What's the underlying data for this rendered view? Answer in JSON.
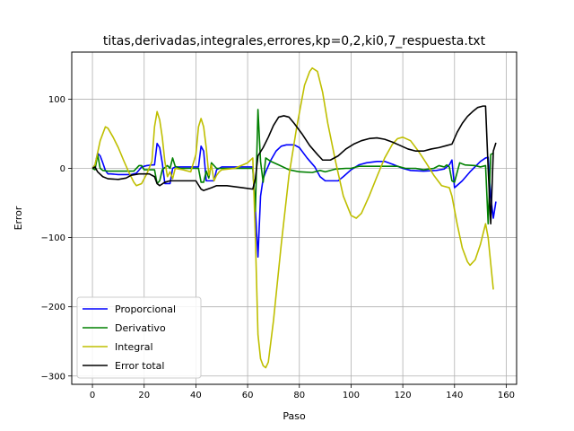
{
  "chart_data": {
    "type": "line",
    "title": "titas,derivadas,integrales,errores,kp=0,2,ki0,7_respuesta.txt",
    "xlabel": "Paso",
    "ylabel": "Error",
    "xlim": [
      -8,
      164
    ],
    "ylim": [
      -312,
      168
    ],
    "xticks": [
      0,
      20,
      40,
      60,
      80,
      100,
      120,
      140,
      160
    ],
    "yticks": [
      100,
      0,
      -100,
      -200,
      -300
    ],
    "ytick_labels": [
      "100",
      "0",
      "−100",
      "−200",
      "−300"
    ],
    "grid": true,
    "legend_position": "lower-left",
    "series": [
      {
        "name": "Proporcional",
        "color": "#0000ff",
        "points": [
          [
            0,
            0
          ],
          [
            1,
            5
          ],
          [
            2,
            22
          ],
          [
            3,
            18
          ],
          [
            4,
            8
          ],
          [
            5,
            -3
          ],
          [
            6,
            -8
          ],
          [
            7,
            -8
          ],
          [
            10,
            -9
          ],
          [
            15,
            -9
          ],
          [
            17,
            -7
          ],
          [
            19,
            2
          ],
          [
            21,
            4
          ],
          [
            23,
            5
          ],
          [
            24,
            5
          ],
          [
            25,
            36
          ],
          [
            26,
            30
          ],
          [
            27,
            8
          ],
          [
            28,
            -22
          ],
          [
            30,
            -22
          ],
          [
            31,
            0
          ],
          [
            32,
            2
          ],
          [
            35,
            2
          ],
          [
            41,
            2
          ],
          [
            42,
            32
          ],
          [
            43,
            25
          ],
          [
            44,
            -18
          ],
          [
            47,
            -18
          ],
          [
            48,
            -2
          ],
          [
            50,
            2
          ],
          [
            55,
            2
          ],
          [
            60,
            2
          ],
          [
            62,
            2
          ],
          [
            63,
            -60
          ],
          [
            64,
            -128
          ],
          [
            65,
            -40
          ],
          [
            66,
            -15
          ],
          [
            67,
            -5
          ],
          [
            69,
            12
          ],
          [
            71,
            25
          ],
          [
            73,
            32
          ],
          [
            75,
            34
          ],
          [
            78,
            34
          ],
          [
            80,
            30
          ],
          [
            83,
            15
          ],
          [
            86,
            2
          ],
          [
            88,
            -12
          ],
          [
            90,
            -18
          ],
          [
            95,
            -18
          ],
          [
            97,
            -12
          ],
          [
            100,
            -2
          ],
          [
            103,
            5
          ],
          [
            106,
            8
          ],
          [
            110,
            10
          ],
          [
            113,
            10
          ],
          [
            116,
            6
          ],
          [
            120,
            0
          ],
          [
            123,
            -3
          ],
          [
            128,
            -4
          ],
          [
            133,
            -3
          ],
          [
            136,
            -1
          ],
          [
            138,
            5
          ],
          [
            139,
            12
          ],
          [
            140,
            -28
          ],
          [
            143,
            -18
          ],
          [
            146,
            -5
          ],
          [
            150,
            10
          ],
          [
            152,
            15
          ],
          [
            153,
            16
          ],
          [
            154,
            -40
          ],
          [
            155,
            -72
          ],
          [
            156,
            -48
          ]
        ]
      },
      {
        "name": "Derivativo",
        "color": "#008000",
        "points": [
          [
            0,
            0
          ],
          [
            1,
            -2
          ],
          [
            2,
            20
          ],
          [
            3,
            0
          ],
          [
            4,
            -3
          ],
          [
            6,
            -4
          ],
          [
            8,
            -4
          ],
          [
            12,
            -4
          ],
          [
            16,
            -4
          ],
          [
            18,
            4
          ],
          [
            19,
            4
          ],
          [
            20,
            -2
          ],
          [
            22,
            -2
          ],
          [
            24,
            -2
          ],
          [
            25,
            -22
          ],
          [
            26,
            -18
          ],
          [
            27,
            -2
          ],
          [
            29,
            4
          ],
          [
            30,
            0
          ],
          [
            31,
            15
          ],
          [
            32,
            3
          ],
          [
            34,
            0
          ],
          [
            38,
            0
          ],
          [
            41,
            0
          ],
          [
            42,
            -20
          ],
          [
            43,
            -20
          ],
          [
            44,
            -4
          ],
          [
            45,
            -14
          ],
          [
            46,
            8
          ],
          [
            48,
            0
          ],
          [
            52,
            0
          ],
          [
            56,
            0
          ],
          [
            60,
            0
          ],
          [
            62,
            0
          ],
          [
            63,
            -62
          ],
          [
            64,
            85
          ],
          [
            65,
            10
          ],
          [
            66,
            -20
          ],
          [
            67,
            15
          ],
          [
            69,
            10
          ],
          [
            72,
            5
          ],
          [
            76,
            -2
          ],
          [
            80,
            -5
          ],
          [
            85,
            -6
          ],
          [
            88,
            -3
          ],
          [
            90,
            -5
          ],
          [
            94,
            -1
          ],
          [
            98,
            0
          ],
          [
            100,
            0
          ],
          [
            103,
            3
          ],
          [
            106,
            3
          ],
          [
            110,
            3
          ],
          [
            115,
            3
          ],
          [
            118,
            3
          ],
          [
            121,
            0
          ],
          [
            125,
            0
          ],
          [
            128,
            -2
          ],
          [
            132,
            0
          ],
          [
            134,
            4
          ],
          [
            136,
            2
          ],
          [
            137,
            5
          ],
          [
            138,
            2
          ],
          [
            139,
            -18
          ],
          [
            140,
            -20
          ],
          [
            142,
            8
          ],
          [
            144,
            5
          ],
          [
            148,
            4
          ],
          [
            150,
            2
          ],
          [
            152,
            4
          ],
          [
            153,
            -80
          ],
          [
            154,
            20
          ],
          [
            155,
            22
          ]
        ]
      },
      {
        "name": "Integral",
        "color": "#bfbf00",
        "points": [
          [
            0,
            0
          ],
          [
            1,
            5
          ],
          [
            3,
            40
          ],
          [
            5,
            60
          ],
          [
            6,
            58
          ],
          [
            8,
            45
          ],
          [
            10,
            30
          ],
          [
            12,
            12
          ],
          [
            14,
            -5
          ],
          [
            16,
            -20
          ],
          [
            17,
            -25
          ],
          [
            19,
            -22
          ],
          [
            21,
            -8
          ],
          [
            23,
            10
          ],
          [
            24,
            60
          ],
          [
            25,
            82
          ],
          [
            26,
            70
          ],
          [
            27,
            45
          ],
          [
            28,
            10
          ],
          [
            29,
            -12
          ],
          [
            30,
            -5
          ],
          [
            31,
            -15
          ],
          [
            32,
            0
          ],
          [
            35,
            -2
          ],
          [
            38,
            -5
          ],
          [
            40,
            20
          ],
          [
            41,
            60
          ],
          [
            42,
            72
          ],
          [
            43,
            60
          ],
          [
            44,
            30
          ],
          [
            45,
            -10
          ],
          [
            46,
            5
          ],
          [
            47,
            -18
          ],
          [
            48,
            -10
          ],
          [
            49,
            -5
          ],
          [
            50,
            -2
          ],
          [
            55,
            0
          ],
          [
            60,
            8
          ],
          [
            62,
            15
          ],
          [
            63,
            -100
          ],
          [
            64,
            -240
          ],
          [
            65,
            -275
          ],
          [
            66,
            -285
          ],
          [
            67,
            -288
          ],
          [
            68,
            -280
          ],
          [
            70,
            -220
          ],
          [
            73,
            -110
          ],
          [
            76,
            -10
          ],
          [
            79,
            60
          ],
          [
            82,
            120
          ],
          [
            84,
            140
          ],
          [
            85,
            145
          ],
          [
            87,
            140
          ],
          [
            89,
            110
          ],
          [
            91,
            65
          ],
          [
            94,
            10
          ],
          [
            97,
            -40
          ],
          [
            100,
            -68
          ],
          [
            102,
            -72
          ],
          [
            104,
            -65
          ],
          [
            107,
            -40
          ],
          [
            110,
            -12
          ],
          [
            113,
            15
          ],
          [
            116,
            35
          ],
          [
            118,
            43
          ],
          [
            120,
            45
          ],
          [
            123,
            40
          ],
          [
            126,
            25
          ],
          [
            129,
            8
          ],
          [
            132,
            -10
          ],
          [
            135,
            -25
          ],
          [
            138,
            -28
          ],
          [
            139,
            -40
          ],
          [
            141,
            -80
          ],
          [
            143,
            -115
          ],
          [
            145,
            -135
          ],
          [
            146,
            -140
          ],
          [
            148,
            -132
          ],
          [
            150,
            -110
          ],
          [
            151,
            -95
          ],
          [
            152,
            -80
          ],
          [
            153,
            -100
          ],
          [
            155,
            -175
          ]
        ]
      },
      {
        "name": "Error total",
        "color": "#000000",
        "points": [
          [
            0,
            0
          ],
          [
            1,
            2
          ],
          [
            2,
            -5
          ],
          [
            4,
            -12
          ],
          [
            6,
            -15
          ],
          [
            10,
            -16
          ],
          [
            13,
            -14
          ],
          [
            15,
            -10
          ],
          [
            18,
            -8
          ],
          [
            22,
            -8
          ],
          [
            24,
            -12
          ],
          [
            25,
            -22
          ],
          [
            26,
            -25
          ],
          [
            28,
            -20
          ],
          [
            30,
            -18
          ],
          [
            36,
            -18
          ],
          [
            40,
            -18
          ],
          [
            42,
            -30
          ],
          [
            43,
            -32
          ],
          [
            46,
            -28
          ],
          [
            48,
            -25
          ],
          [
            52,
            -25
          ],
          [
            58,
            -28
          ],
          [
            62,
            -30
          ],
          [
            63,
            -15
          ],
          [
            64,
            18
          ],
          [
            66,
            30
          ],
          [
            68,
            45
          ],
          [
            70,
            62
          ],
          [
            72,
            74
          ],
          [
            74,
            76
          ],
          [
            76,
            74
          ],
          [
            78,
            65
          ],
          [
            81,
            50
          ],
          [
            84,
            33
          ],
          [
            87,
            20
          ],
          [
            89,
            12
          ],
          [
            92,
            12
          ],
          [
            95,
            18
          ],
          [
            98,
            28
          ],
          [
            101,
            35
          ],
          [
            104,
            40
          ],
          [
            107,
            43
          ],
          [
            110,
            44
          ],
          [
            113,
            42
          ],
          [
            116,
            38
          ],
          [
            119,
            33
          ],
          [
            122,
            28
          ],
          [
            125,
            25
          ],
          [
            128,
            25
          ],
          [
            131,
            28
          ],
          [
            134,
            30
          ],
          [
            137,
            33
          ],
          [
            139,
            35
          ],
          [
            141,
            52
          ],
          [
            143,
            65
          ],
          [
            145,
            75
          ],
          [
            147,
            82
          ],
          [
            149,
            88
          ],
          [
            151,
            90
          ],
          [
            152,
            90
          ],
          [
            153,
            0
          ],
          [
            154,
            -80
          ],
          [
            155,
            25
          ],
          [
            156,
            37
          ]
        ]
      }
    ]
  }
}
